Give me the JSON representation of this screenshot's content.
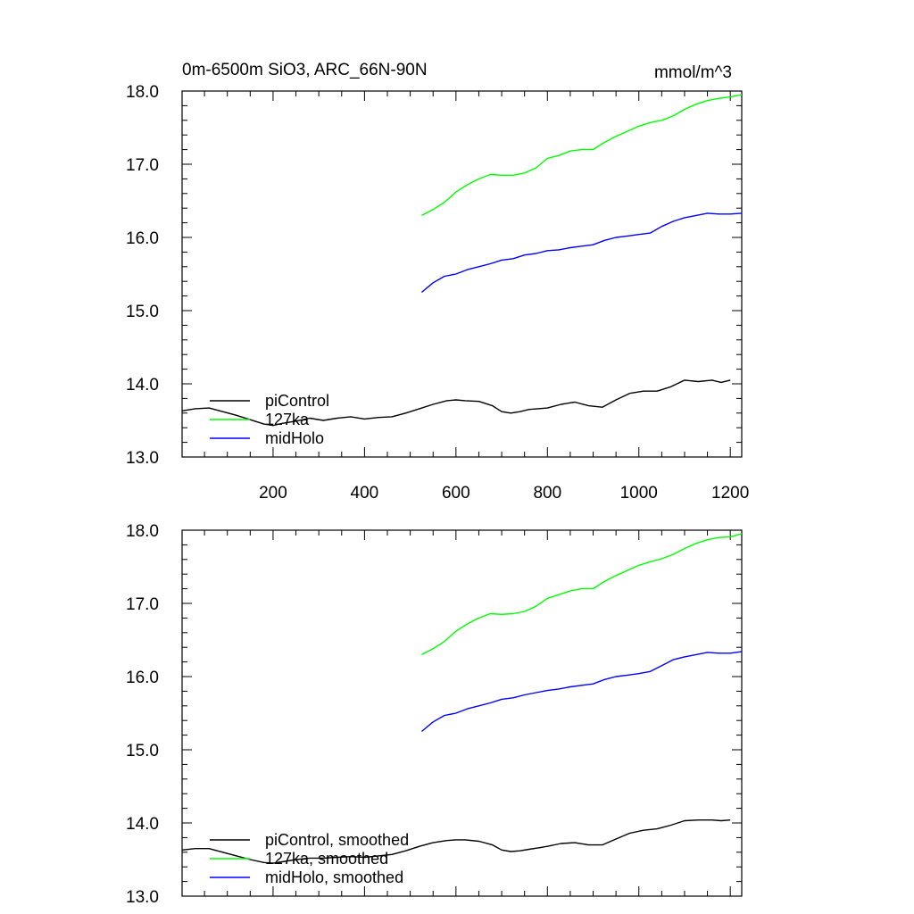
{
  "header": {
    "title": "0m-6500m SiO3, ARC_66N-90N",
    "units": "mmol/m^3"
  },
  "chart_data": [
    {
      "type": "line",
      "panel": "top",
      "title": "0m-6500m SiO3, ARC_66N-90N",
      "units": "mmol/m^3",
      "xlim": [
        1,
        1225
      ],
      "ylim": [
        13.0,
        18.0
      ],
      "x_ticks": [
        200,
        400,
        600,
        800,
        1000,
        1200
      ],
      "y_ticks": [
        13.0,
        14.0,
        15.0,
        16.0,
        17.0,
        18.0
      ],
      "y_tick_labels": [
        "13.0",
        "14.0",
        "15.0",
        "16.0",
        "17.0",
        "18.0"
      ],
      "legend_position": "bottom-left",
      "series": [
        {
          "name": "piControl",
          "color": "#000000",
          "x": [
            1,
            30,
            60,
            90,
            120,
            150,
            180,
            200,
            220,
            250,
            280,
            310,
            340,
            370,
            400,
            430,
            460,
            490,
            520,
            550,
            580,
            600,
            620,
            650,
            680,
            700,
            720,
            740,
            760,
            780,
            800,
            830,
            860,
            890,
            920,
            950,
            980,
            1010,
            1040,
            1070,
            1100,
            1130,
            1160,
            1180,
            1200
          ],
          "y": [
            13.63,
            13.66,
            13.67,
            13.62,
            13.57,
            13.51,
            13.45,
            13.43,
            13.46,
            13.49,
            13.53,
            13.5,
            13.53,
            13.55,
            13.52,
            13.54,
            13.55,
            13.6,
            13.66,
            13.72,
            13.77,
            13.78,
            13.77,
            13.76,
            13.7,
            13.62,
            13.6,
            13.62,
            13.65,
            13.66,
            13.67,
            13.72,
            13.75,
            13.7,
            13.68,
            13.78,
            13.87,
            13.9,
            13.9,
            13.96,
            14.05,
            14.03,
            14.05,
            14.02,
            14.05
          ]
        },
        {
          "name": "127ka",
          "color": "#00ff00",
          "x": [
            525,
            550,
            575,
            600,
            625,
            650,
            675,
            700,
            725,
            750,
            775,
            800,
            825,
            850,
            875,
            900,
            925,
            950,
            975,
            1000,
            1025,
            1050,
            1075,
            1100,
            1125,
            1150,
            1175,
            1200,
            1225
          ],
          "y": [
            16.3,
            16.38,
            16.48,
            16.62,
            16.72,
            16.8,
            16.86,
            16.85,
            16.85,
            16.88,
            16.95,
            17.08,
            17.12,
            17.18,
            17.2,
            17.2,
            17.3,
            17.38,
            17.45,
            17.52,
            17.57,
            17.6,
            17.66,
            17.75,
            17.82,
            17.87,
            17.9,
            17.92,
            17.95
          ]
        },
        {
          "name": "midHolo",
          "color": "#0000ff",
          "x": [
            525,
            550,
            575,
            600,
            625,
            650,
            675,
            700,
            725,
            750,
            775,
            800,
            825,
            850,
            875,
            900,
            925,
            950,
            975,
            1000,
            1025,
            1050,
            1075,
            1100,
            1125,
            1150,
            1175,
            1200,
            1225
          ],
          "y": [
            15.25,
            15.38,
            15.47,
            15.5,
            15.56,
            15.6,
            15.64,
            15.69,
            15.71,
            15.76,
            15.78,
            15.82,
            15.83,
            15.86,
            15.88,
            15.9,
            15.96,
            16.0,
            16.02,
            16.04,
            16.06,
            16.15,
            16.22,
            16.27,
            16.3,
            16.33,
            16.32,
            16.32,
            16.33
          ]
        }
      ]
    },
    {
      "type": "line",
      "panel": "bottom",
      "xlim": [
        1,
        1225
      ],
      "ylim": [
        13.0,
        18.0
      ],
      "x_ticks": [
        200,
        400,
        600,
        800,
        1000,
        1200
      ],
      "y_ticks": [
        13.0,
        14.0,
        15.0,
        16.0,
        17.0,
        18.0
      ],
      "y_tick_labels": [
        "13.0",
        "14.0",
        "15.0",
        "16.0",
        "17.0",
        "18.0"
      ],
      "legend_position": "bottom-left",
      "series": [
        {
          "name": "piControl, smoothed",
          "color": "#000000",
          "x": [
            1,
            30,
            60,
            90,
            120,
            150,
            180,
            200,
            220,
            250,
            280,
            310,
            340,
            370,
            400,
            430,
            460,
            490,
            520,
            550,
            580,
            600,
            620,
            650,
            680,
            700,
            720,
            740,
            760,
            780,
            800,
            830,
            860,
            890,
            920,
            950,
            980,
            1010,
            1040,
            1070,
            1100,
            1130,
            1160,
            1180,
            1200
          ],
          "y": [
            13.63,
            13.65,
            13.65,
            13.6,
            13.55,
            13.5,
            13.46,
            13.45,
            13.47,
            13.5,
            13.52,
            13.52,
            13.53,
            13.54,
            13.53,
            13.55,
            13.57,
            13.62,
            13.68,
            13.73,
            13.76,
            13.77,
            13.77,
            13.75,
            13.7,
            13.63,
            13.61,
            13.62,
            13.64,
            13.66,
            13.68,
            13.72,
            13.73,
            13.7,
            13.7,
            13.78,
            13.86,
            13.9,
            13.92,
            13.97,
            14.03,
            14.04,
            14.04,
            14.03,
            14.04
          ]
        },
        {
          "name": "127ka, smoothed",
          "color": "#00ff00",
          "x": [
            525,
            550,
            575,
            600,
            625,
            650,
            675,
            700,
            725,
            750,
            775,
            800,
            825,
            850,
            875,
            900,
            925,
            950,
            975,
            1000,
            1025,
            1050,
            1075,
            1100,
            1125,
            1150,
            1175,
            1200,
            1225
          ],
          "y": [
            16.3,
            16.38,
            16.48,
            16.62,
            16.72,
            16.8,
            16.86,
            16.85,
            16.86,
            16.89,
            16.96,
            17.07,
            17.12,
            17.17,
            17.2,
            17.2,
            17.3,
            17.38,
            17.45,
            17.52,
            17.57,
            17.61,
            17.67,
            17.75,
            17.82,
            17.87,
            17.9,
            17.91,
            17.95
          ]
        },
        {
          "name": "midHolo, smoothed",
          "color": "#0000ff",
          "x": [
            525,
            550,
            575,
            600,
            625,
            650,
            675,
            700,
            725,
            750,
            775,
            800,
            825,
            850,
            875,
            900,
            925,
            950,
            975,
            1000,
            1025,
            1050,
            1075,
            1100,
            1125,
            1150,
            1175,
            1200,
            1225
          ],
          "y": [
            15.25,
            15.38,
            15.47,
            15.5,
            15.56,
            15.6,
            15.64,
            15.69,
            15.71,
            15.75,
            15.78,
            15.81,
            15.83,
            15.86,
            15.88,
            15.9,
            15.96,
            16.0,
            16.02,
            16.04,
            16.07,
            16.15,
            16.23,
            16.27,
            16.3,
            16.33,
            16.32,
            16.32,
            16.34
          ]
        }
      ]
    }
  ]
}
